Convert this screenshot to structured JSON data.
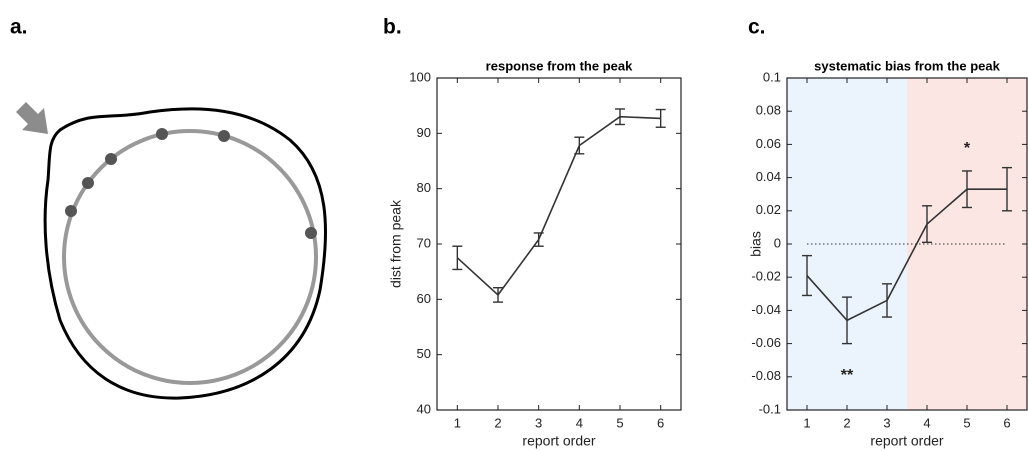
{
  "panel_labels": [
    "a.",
    "b.",
    "c."
  ],
  "chart_data": [
    {
      "type": "line",
      "title": "response from the peak",
      "x_label": "report order",
      "y_label": "dist from peak",
      "x": [
        1,
        2,
        3,
        4,
        5,
        6
      ],
      "values": [
        67.5,
        60.8,
        70.8,
        87.8,
        93,
        92.7
      ],
      "errors": [
        2.1,
        1.3,
        1.2,
        1.5,
        1.4,
        1.6
      ],
      "color": "#333333",
      "xlim": [
        0.5,
        6.5
      ],
      "xticks": [
        1,
        2,
        3,
        4,
        5,
        6
      ],
      "ylim": [
        40,
        100
      ],
      "yticks": [
        40,
        50,
        60,
        70,
        80,
        90,
        100
      ]
    },
    {
      "type": "line",
      "title": "systematic bias from the peak",
      "x_label": "report order",
      "y_label": "bias",
      "x": [
        1,
        2,
        3,
        4,
        5,
        6
      ],
      "values": [
        -0.019,
        -0.046,
        -0.034,
        0.012,
        0.033,
        0.033
      ],
      "errors": [
        0.012,
        0.014,
        0.01,
        0.011,
        0.011,
        0.013
      ],
      "color": "#333333",
      "xlim": [
        0.5,
        6.5
      ],
      "xticks": [
        1,
        2,
        3,
        4,
        5,
        6
      ],
      "ylim": [
        -0.1,
        0.1
      ],
      "yticks": [
        -0.1,
        -0.08,
        -0.06,
        -0.04,
        -0.02,
        0,
        0.02,
        0.04,
        0.06,
        0.08,
        0.1
      ],
      "reference_line": 0,
      "regions": [
        {
          "xlim": [
            0.5,
            3.5
          ],
          "color": "#ebf3fd"
        },
        {
          "xlim": [
            3.5,
            6.5
          ],
          "color": "#fbe6e3"
        }
      ],
      "annotations": [
        {
          "text": "**",
          "x": 2
        },
        {
          "text": "*",
          "x": 5
        }
      ]
    }
  ]
}
